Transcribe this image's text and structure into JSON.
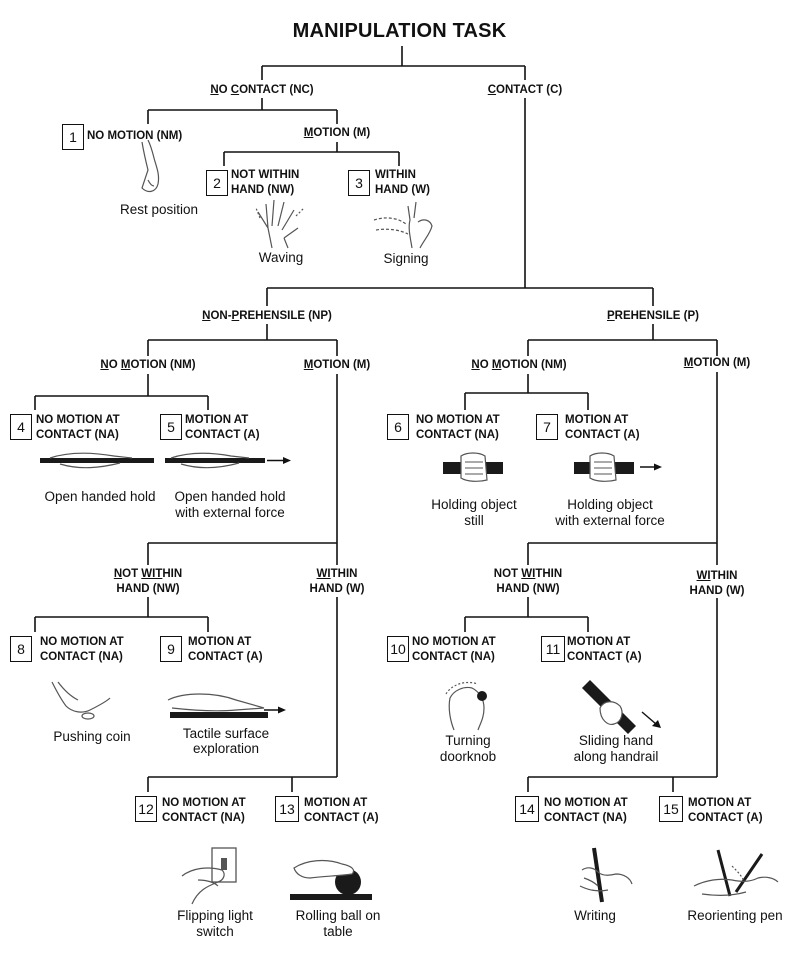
{
  "title": "MANIPULATION TASK",
  "headers": {
    "no_contact": [
      "N",
      "O ",
      "C",
      "ONTACT (NC)"
    ],
    "contact": [
      "C",
      "ONTACT (C)"
    ],
    "nc_motion": [
      "M",
      "OTION (M)"
    ],
    "non_prehensile": [
      "N",
      "ON-",
      "P",
      "REHENSILE (NP)"
    ],
    "prehensile": [
      "P",
      "REHENSILE (P)"
    ],
    "np_no_motion": [
      "N",
      "O ",
      "M",
      "OTION (NM)"
    ],
    "np_motion": [
      "M",
      "OTION (M)"
    ],
    "p_no_motion": [
      "N",
      "O ",
      "M",
      "OTION (NM)"
    ],
    "p_motion": [
      "M",
      "OTION (M)"
    ],
    "np_not_within": [
      "N",
      "OT ",
      "WIT",
      "HIN",
      "HAND (NW)"
    ],
    "np_within": [
      "WI",
      "THIN",
      "HAND (W)"
    ],
    "p_not_within": [
      "NOT ",
      "WI",
      "THIN",
      "HAND (NW)"
    ],
    "p_within": [
      "WI",
      "THIN",
      "HAND (W)"
    ]
  },
  "categories": [
    {
      "number": "1",
      "label": "NO MOTION (NM)",
      "caption": "Rest position"
    },
    {
      "number": "2",
      "label": "NOT WITHIN\nHAND (NW)",
      "caption": "Waving"
    },
    {
      "number": "3",
      "label": "WITHIN\nHAND (W)",
      "caption": "Signing"
    },
    {
      "number": "4",
      "label": "NO MOTION AT\nCONTACT (NA)",
      "caption": "Open handed hold"
    },
    {
      "number": "5",
      "label": "MOTION AT\nCONTACT (A)",
      "caption": "Open handed hold\nwith external force"
    },
    {
      "number": "6",
      "label": "NO MOTION AT\nCONTACT (NA)",
      "caption": "Holding object\nstill"
    },
    {
      "number": "7",
      "label": "MOTION AT\nCONTACT (A)",
      "caption": "Holding object\nwith external force"
    },
    {
      "number": "8",
      "label": "NO MOTION AT\nCONTACT (NA)",
      "caption": "Pushing coin"
    },
    {
      "number": "9",
      "label": "MOTION AT\nCONTACT (A)",
      "caption": "Tactile surface\nexploration"
    },
    {
      "number": "10",
      "label": "NO MOTION AT\nCONTACT (NA)",
      "caption": "Turning\ndoorknob"
    },
    {
      "number": "11",
      "label": "MOTION AT\nCONTACT (A)",
      "caption": "Sliding hand\nalong handrail"
    },
    {
      "number": "12",
      "label": "NO MOTION AT\nCONTACT (NA)",
      "caption": "Flipping light\nswitch"
    },
    {
      "number": "13",
      "label": "MOTION AT\nCONTACT (A)",
      "caption": "Rolling ball on\ntable"
    },
    {
      "number": "14",
      "label": "NO MOTION AT\nCONTACT (NA)",
      "caption": "Writing"
    },
    {
      "number": "15",
      "label": "MOTION AT\nCONTACT (A)",
      "caption": "Reorienting pen"
    }
  ],
  "colors": {
    "line": "#111111",
    "sketch": "#555555",
    "bar": "#1a1a1a"
  }
}
